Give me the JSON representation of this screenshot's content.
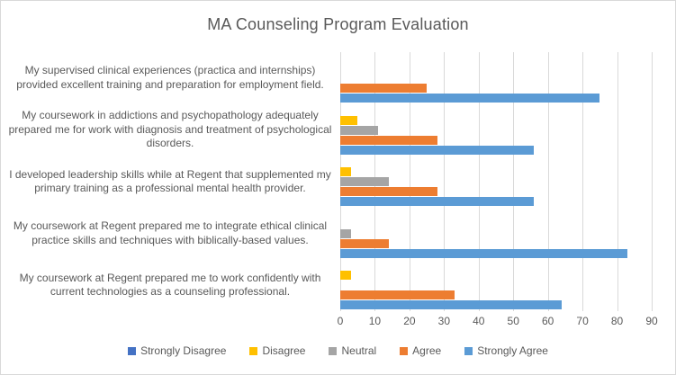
{
  "chart_data": {
    "type": "bar",
    "orientation": "horizontal",
    "title": "MA Counseling Program Evaluation",
    "categories": [
      "My supervised clinical experiences (practica and internships) provided excellent training and preparation for employment field.",
      "My coursework in addictions and psychopathology adequately prepared me for work with diagnosis and treatment of psychological disorders.",
      "I developed leadership skills while at Regent that supplemented my primary training as a professional mental health provider.",
      "My coursework at Regent prepared me to integrate ethical clinical practice skills and techniques with biblically-based values.",
      "My coursework at Regent prepared me to work confidently with current technologies as a counseling professional."
    ],
    "series": [
      {
        "name": "Strongly Disagree",
        "color": "#4472C4",
        "values": [
          0,
          0,
          0,
          0,
          0
        ]
      },
      {
        "name": "Disagree",
        "color": "#FFC000",
        "values": [
          0,
          5,
          3,
          0,
          3
        ]
      },
      {
        "name": "Neutral",
        "color": "#A5A5A5",
        "values": [
          0,
          11,
          14,
          3,
          0
        ]
      },
      {
        "name": "Agree",
        "color": "#ED7D31",
        "values": [
          25,
          28,
          28,
          14,
          33
        ]
      },
      {
        "name": "Strongly Agree",
        "color": "#5B9BD5",
        "values": [
          75,
          56,
          56,
          83,
          64
        ]
      }
    ],
    "xlim": [
      0,
      90
    ],
    "x_ticks": [
      0,
      10,
      20,
      30,
      40,
      50,
      60,
      70,
      80,
      90
    ],
    "grid": true,
    "legend_position": "bottom",
    "colors": {
      "text": "#595959",
      "gridline": "#D9D9D9",
      "border": "#D9D9D9",
      "background": "#FFFFFF"
    }
  }
}
